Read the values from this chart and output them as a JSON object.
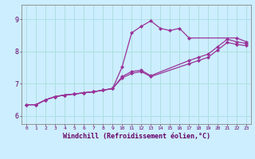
{
  "xlabel": "Windchill (Refroidissement éolien,°C)",
  "bg_color": "#cceeff",
  "line_color": "#993399",
  "marker": "D",
  "markersize": 2.0,
  "linewidth": 0.9,
  "xlim": [
    -0.5,
    23.5
  ],
  "ylim": [
    5.75,
    9.45
  ],
  "xticks": [
    0,
    1,
    2,
    3,
    4,
    5,
    6,
    7,
    8,
    9,
    10,
    11,
    12,
    13,
    14,
    15,
    16,
    17,
    18,
    19,
    20,
    21,
    22,
    23
  ],
  "yticks": [
    6,
    7,
    8,
    9
  ],
  "grid_color": "#aadddd",
  "series1_x": [
    0,
    1,
    2,
    3,
    4,
    5,
    6,
    7,
    8,
    9,
    10,
    11,
    12,
    13,
    14,
    15,
    16,
    17,
    22,
    23
  ],
  "series1_y": [
    6.35,
    6.35,
    6.5,
    6.6,
    6.65,
    6.68,
    6.72,
    6.75,
    6.8,
    6.85,
    7.52,
    8.58,
    8.78,
    8.95,
    8.72,
    8.65,
    8.72,
    8.42,
    8.42,
    8.3
  ],
  "series2_x": [
    0,
    1,
    2,
    3,
    4,
    5,
    6,
    7,
    8,
    9,
    10,
    11,
    12,
    13,
    17,
    18,
    19,
    20,
    21,
    22,
    23
  ],
  "series2_y": [
    6.35,
    6.35,
    6.5,
    6.6,
    6.65,
    6.68,
    6.72,
    6.75,
    6.8,
    6.85,
    7.22,
    7.38,
    7.42,
    7.25,
    7.72,
    7.82,
    7.92,
    8.15,
    8.38,
    8.3,
    8.25
  ],
  "series3_x": [
    0,
    1,
    2,
    3,
    4,
    5,
    6,
    7,
    8,
    9,
    10,
    11,
    12,
    13,
    17,
    18,
    19,
    20,
    21,
    22,
    23
  ],
  "series3_y": [
    6.35,
    6.35,
    6.5,
    6.6,
    6.65,
    6.68,
    6.72,
    6.75,
    6.8,
    6.85,
    7.18,
    7.32,
    7.38,
    7.22,
    7.62,
    7.72,
    7.82,
    8.05,
    8.28,
    8.22,
    8.18
  ]
}
